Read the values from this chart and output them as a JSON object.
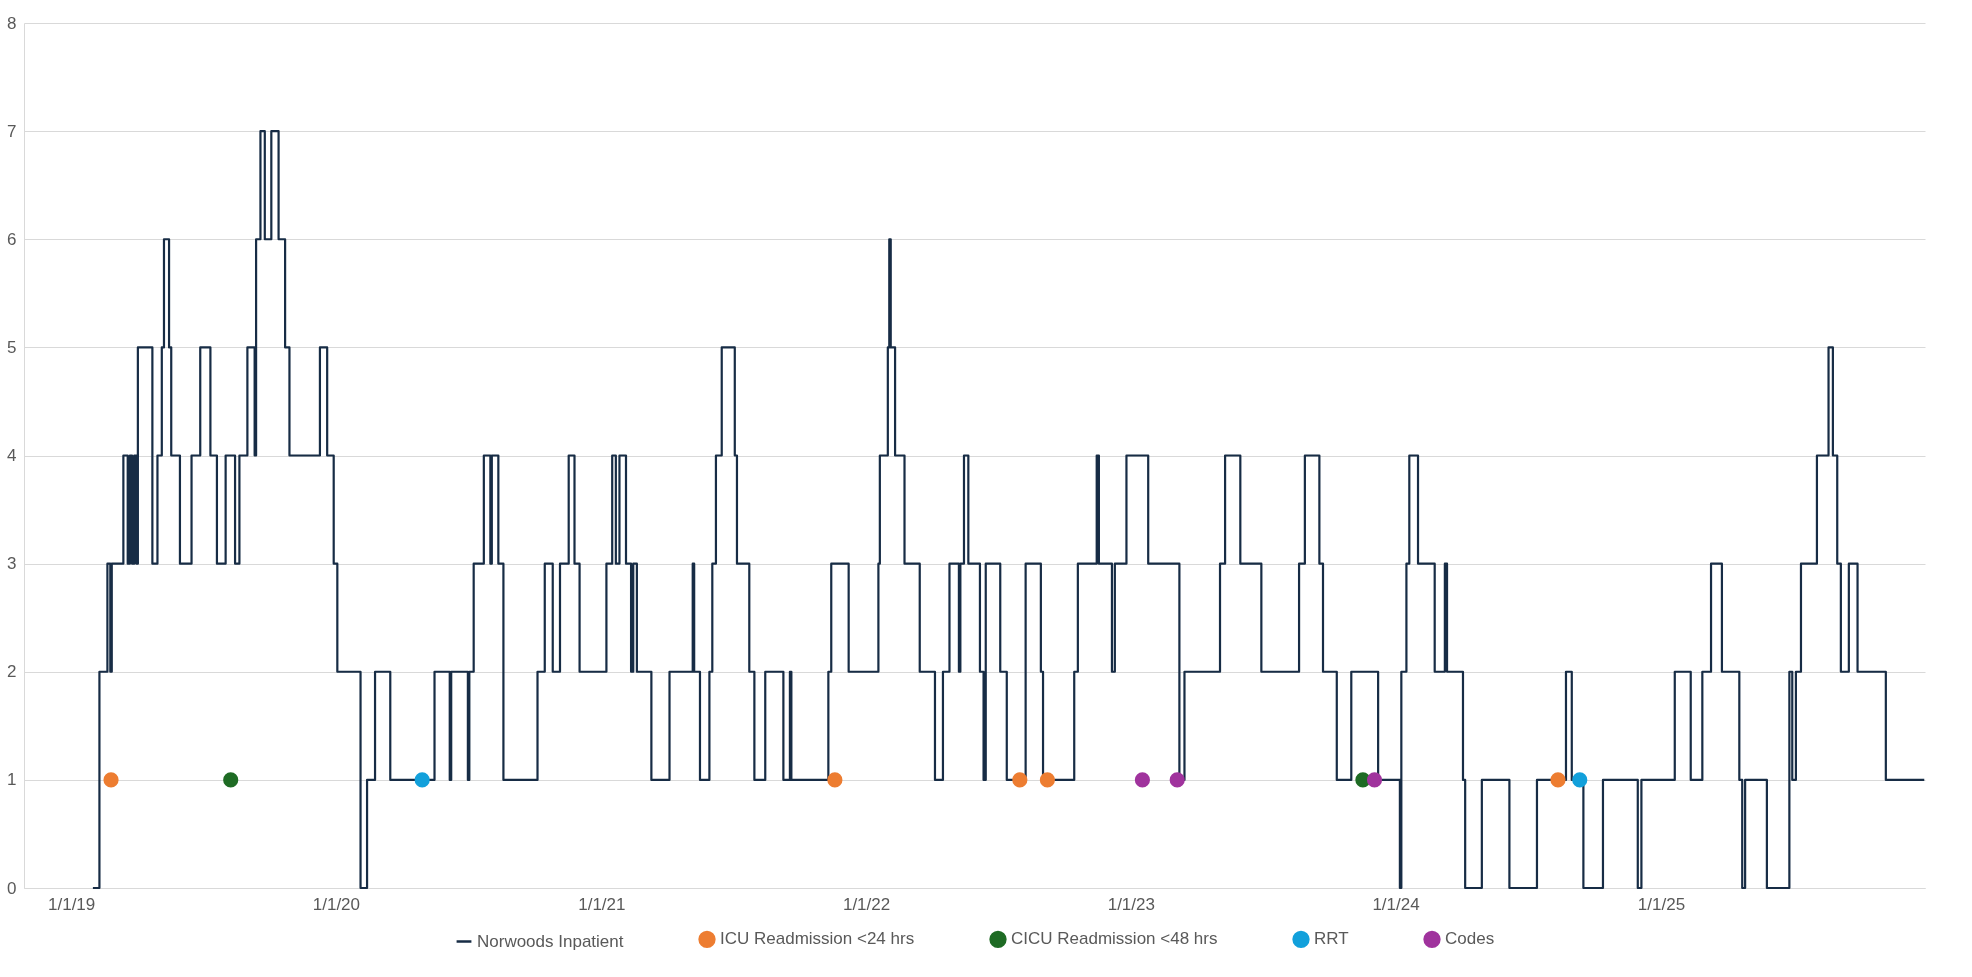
{
  "chart_data": {
    "type": "step",
    "xlim": [
      "2018-10-28",
      "2025-12-31"
    ],
    "xticks": [
      {
        "value": "2019-01-01",
        "label": "1/1/19"
      },
      {
        "value": "2020-01-01",
        "label": "1/1/20"
      },
      {
        "value": "2021-01-01",
        "label": "1/1/21"
      },
      {
        "value": "2022-01-01",
        "label": "1/1/22"
      },
      {
        "value": "2023-01-01",
        "label": "1/1/23"
      },
      {
        "value": "2024-01-01",
        "label": "1/1/24"
      },
      {
        "value": "2025-01-01",
        "label": "1/1/25"
      }
    ],
    "ylim": [
      0,
      8
    ],
    "yticks": [
      0,
      1,
      2,
      3,
      4,
      5,
      6,
      7,
      8
    ],
    "grid": "y",
    "legend": "bottom",
    "series": [
      {
        "name": "Norwoods Inpatient",
        "color": "#172c45",
        "x": [
          "2019-01-31",
          "2019-02-09",
          "2019-02-20",
          "2019-02-24",
          "2019-02-26",
          "2019-03-14",
          "2019-03-20",
          "2019-03-23",
          "2019-03-26",
          "2019-03-29",
          "2019-04-01",
          "2019-04-03",
          "2019-04-23",
          "2019-04-30",
          "2019-05-06",
          "2019-05-09",
          "2019-05-16",
          "2019-05-19",
          "2019-05-31",
          "2019-06-16",
          "2019-06-28",
          "2019-07-12",
          "2019-07-21",
          "2019-08-02",
          "2019-08-15",
          "2019-08-21",
          "2019-09-01",
          "2019-09-11",
          "2019-09-13",
          "2019-09-19",
          "2019-09-25",
          "2019-10-04",
          "2019-10-14",
          "2019-10-23",
          "2019-10-29",
          "2019-12-10",
          "2019-12-20",
          "2019-12-29",
          "2020-01-03",
          "2020-02-04",
          "2020-02-13",
          "2020-02-24",
          "2020-03-16",
          "2020-05-16",
          "2020-06-06",
          "2020-06-08",
          "2020-07-01",
          "2020-07-03",
          "2020-07-09",
          "2020-07-23",
          "2020-08-01",
          "2020-08-03",
          "2020-08-12",
          "2020-08-19",
          "2020-10-05",
          "2020-10-15",
          "2020-10-26",
          "2020-11-05",
          "2020-11-17",
          "2020-11-25",
          "2020-12-02",
          "2021-01-08",
          "2021-01-16",
          "2021-01-21",
          "2021-01-26",
          "2021-02-04",
          "2021-02-11",
          "2021-02-14",
          "2021-02-19",
          "2021-03-11",
          "2021-04-05",
          "2021-05-07",
          "2021-05-09",
          "2021-05-17",
          "2021-05-30",
          "2021-06-03",
          "2021-06-08",
          "2021-06-16",
          "2021-07-04",
          "2021-07-07",
          "2021-07-24",
          "2021-07-31",
          "2021-08-15",
          "2021-09-09",
          "2021-09-18",
          "2021-09-20",
          "2021-11-10",
          "2021-11-14",
          "2021-12-08",
          "2022-01-18",
          "2022-01-20",
          "2022-01-31",
          "2022-02-02",
          "2022-02-04",
          "2022-02-10",
          "2022-02-23",
          "2022-03-16",
          "2022-04-06",
          "2022-04-17",
          "2022-04-26",
          "2022-05-09",
          "2022-05-11",
          "2022-05-16",
          "2022-05-22",
          "2022-06-07",
          "2022-06-12",
          "2022-06-15",
          "2022-07-05",
          "2022-07-14",
          "2022-08-09",
          "2022-08-30",
          "2022-09-02",
          "2022-10-15",
          "2022-10-20",
          "2022-11-15",
          "2022-11-18",
          "2022-12-06",
          "2022-12-10",
          "2022-12-26",
          "2023-01-25",
          "2023-03-09",
          "2023-03-16",
          "2023-05-04",
          "2023-05-11",
          "2023-06-01",
          "2023-06-30",
          "2023-08-21",
          "2023-08-29",
          "2023-09-18",
          "2023-09-23",
          "2023-10-12",
          "2023-11-01",
          "2023-12-08",
          "2024-01-07",
          "2024-01-09",
          "2024-01-16",
          "2024-01-20",
          "2024-02-01",
          "2024-02-24",
          "2024-03-09",
          "2024-03-12",
          "2024-04-03",
          "2024-04-06",
          "2024-04-29",
          "2024-06-06",
          "2024-07-14",
          "2024-08-23",
          "2024-08-31",
          "2024-09-16",
          "2024-10-13",
          "2024-11-30",
          "2024-12-05",
          "2025-01-20",
          "2025-02-11",
          "2025-02-27",
          "2025-03-11",
          "2025-03-26",
          "2025-04-19",
          "2025-04-23",
          "2025-04-27",
          "2025-05-27",
          "2025-06-27",
          "2025-07-01",
          "2025-07-06",
          "2025-07-13",
          "2025-08-04",
          "2025-08-20",
          "2025-08-26",
          "2025-09-01",
          "2025-09-06",
          "2025-09-17",
          "2025-09-29",
          "2025-11-07",
          "2025-12-30"
        ],
        "values": [
          0,
          2,
          3,
          2,
          3,
          4,
          3,
          4,
          3,
          4,
          3,
          5,
          3,
          4,
          5,
          6,
          5,
          4,
          3,
          4,
          5,
          4,
          3,
          4,
          3,
          4,
          5,
          4,
          6,
          7,
          6,
          7,
          6,
          5,
          4,
          5,
          4,
          3,
          2,
          0,
          1,
          2,
          1,
          2,
          1,
          2,
          1,
          2,
          3,
          4,
          3,
          4,
          3,
          1,
          2,
          3,
          2,
          3,
          4,
          3,
          2,
          3,
          4,
          3,
          4,
          3,
          2,
          3,
          2,
          1,
          2,
          3,
          2,
          1,
          2,
          3,
          4,
          5,
          4,
          3,
          2,
          1,
          2,
          1,
          2,
          1,
          2,
          3,
          2,
          3,
          4,
          5,
          6,
          5,
          4,
          3,
          2,
          1,
          2,
          3,
          2,
          3,
          4,
          3,
          2,
          1,
          3,
          2,
          1,
          3,
          2,
          1,
          2,
          3,
          4,
          3,
          2,
          3,
          4,
          3,
          1,
          2,
          3,
          4,
          3,
          2,
          3,
          4,
          3,
          2,
          1,
          2,
          1,
          0,
          2,
          3,
          4,
          3,
          2,
          3,
          2,
          1,
          0,
          1,
          0,
          1,
          2,
          1,
          0,
          1,
          0,
          1,
          2,
          1,
          2,
          3,
          2,
          1,
          0,
          1,
          0,
          2,
          1,
          2,
          3,
          4,
          5,
          4,
          3,
          2,
          3,
          2,
          1,
          1
        ]
      },
      {
        "name": "ICU Readmission <24 hrs",
        "type": "scatter",
        "marker": "circle",
        "color": "#ed7d31",
        "x": [
          "2019-02-25",
          "2021-11-19",
          "2022-08-01",
          "2022-09-08",
          "2024-08-12"
        ],
        "values": [
          1,
          1,
          1,
          1,
          1
        ]
      },
      {
        "name": "CICU Readmission <48 hrs",
        "type": "scatter",
        "marker": "circle",
        "color": "#1e6b24",
        "x": [
          "2019-08-09",
          "2023-11-17"
        ],
        "values": [
          1,
          1
        ]
      },
      {
        "name": "RRT",
        "type": "scatter",
        "marker": "circle",
        "color": "#12a0db",
        "x": [
          "2020-04-29",
          "2024-09-11"
        ],
        "values": [
          1,
          1
        ]
      },
      {
        "name": "Codes",
        "type": "scatter",
        "marker": "circle",
        "color": "#a0339d",
        "x": [
          "2023-01-17",
          "2023-03-06",
          "2023-12-03"
        ],
        "values": [
          1,
          1,
          1
        ]
      }
    ]
  }
}
